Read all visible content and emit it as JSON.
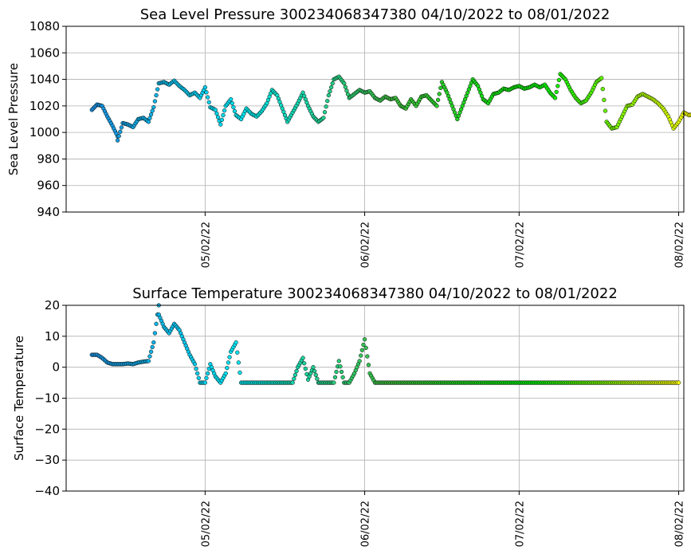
{
  "chart_data": [
    {
      "type": "scatter",
      "title": "Sea Level Pressure 300234068347380  04/10/2022 to 08/01/2022",
      "ylabel": "Sea Level Pressure",
      "xlabel": "",
      "ylim": [
        940,
        1080
      ],
      "yticks": [
        "940",
        "960",
        "980",
        "1000",
        "1020",
        "1040",
        "1060",
        "1080"
      ],
      "xlim": [
        "2022-04-05",
        "2022-08-03"
      ],
      "xticks": [
        {
          "date": "2022-05-02",
          "label": "05/02/22"
        },
        {
          "date": "2022-06-02",
          "label": "06/02/22"
        },
        {
          "date": "2022-07-02",
          "label": "07/02/22"
        },
        {
          "date": "2022-08-02",
          "label": "08/02/22"
        }
      ],
      "grid": true,
      "colormap": [
        "#1a8fe0",
        "#00e5f0",
        "#3fbf3f",
        "#00f000",
        "#ffff00"
      ],
      "series": [
        {
          "points": [
            [
              "2022-04-10",
              1017
            ],
            [
              "2022-04-11",
              1021
            ],
            [
              "2022-04-12",
              1020
            ],
            [
              "2022-04-13",
              1012
            ],
            [
              "2022-04-14",
              1005
            ],
            [
              "2022-04-15",
              997
            ],
            [
              "2022-04-15",
              994
            ],
            [
              "2022-04-16",
              1007
            ],
            [
              "2022-04-17",
              1006
            ],
            [
              "2022-04-18",
              1004
            ],
            [
              "2022-04-19",
              1010
            ],
            [
              "2022-04-20",
              1011
            ],
            [
              "2022-04-21",
              1008
            ],
            [
              "2022-04-22",
              1019
            ],
            [
              "2022-04-23",
              1037
            ],
            [
              "2022-04-24",
              1038
            ],
            [
              "2022-04-25",
              1036
            ],
            [
              "2022-04-26",
              1039
            ],
            [
              "2022-04-27",
              1035
            ],
            [
              "2022-04-28",
              1032
            ],
            [
              "2022-04-29",
              1028
            ],
            [
              "2022-04-30",
              1030
            ],
            [
              "2022-05-01",
              1026
            ],
            [
              "2022-05-02",
              1034
            ],
            [
              "2022-05-03",
              1019
            ],
            [
              "2022-05-04",
              1017
            ],
            [
              "2022-05-05",
              1006
            ],
            [
              "2022-05-06",
              1020
            ],
            [
              "2022-05-07",
              1025
            ],
            [
              "2022-05-08",
              1013
            ],
            [
              "2022-05-09",
              1010
            ],
            [
              "2022-05-10",
              1018
            ],
            [
              "2022-05-11",
              1014
            ],
            [
              "2022-05-12",
              1012
            ],
            [
              "2022-05-13",
              1016
            ],
            [
              "2022-05-14",
              1022
            ],
            [
              "2022-05-15",
              1032
            ],
            [
              "2022-05-16",
              1028
            ],
            [
              "2022-05-17",
              1018
            ],
            [
              "2022-05-18",
              1008
            ],
            [
              "2022-05-19",
              1015
            ],
            [
              "2022-05-20",
              1022
            ],
            [
              "2022-05-21",
              1030
            ],
            [
              "2022-05-22",
              1020
            ],
            [
              "2022-05-23",
              1012
            ],
            [
              "2022-05-24",
              1008
            ],
            [
              "2022-05-25",
              1011
            ],
            [
              "2022-05-26",
              1028
            ],
            [
              "2022-05-27",
              1040
            ],
            [
              "2022-05-28",
              1042
            ],
            [
              "2022-05-29",
              1037
            ],
            [
              "2022-05-30",
              1026
            ],
            [
              "2022-05-31",
              1029
            ],
            [
              "2022-06-01",
              1032
            ],
            [
              "2022-06-02",
              1030
            ],
            [
              "2022-06-03",
              1031
            ],
            [
              "2022-06-04",
              1026
            ],
            [
              "2022-06-05",
              1024
            ],
            [
              "2022-06-06",
              1027
            ],
            [
              "2022-06-07",
              1025
            ],
            [
              "2022-06-08",
              1026
            ],
            [
              "2022-06-09",
              1020
            ],
            [
              "2022-06-10",
              1018
            ],
            [
              "2022-06-11",
              1025
            ],
            [
              "2022-06-12",
              1020
            ],
            [
              "2022-06-13",
              1027
            ],
            [
              "2022-06-14",
              1028
            ],
            [
              "2022-06-15",
              1024
            ],
            [
              "2022-06-16",
              1020
            ],
            [
              "2022-06-17",
              1038
            ],
            [
              "2022-06-18",
              1030
            ],
            [
              "2022-06-19",
              1020
            ],
            [
              "2022-06-20",
              1010
            ],
            [
              "2022-06-21",
              1020
            ],
            [
              "2022-06-22",
              1030
            ],
            [
              "2022-06-23",
              1040
            ],
            [
              "2022-06-24",
              1035
            ],
            [
              "2022-06-25",
              1025
            ],
            [
              "2022-06-26",
              1022
            ],
            [
              "2022-06-27",
              1029
            ],
            [
              "2022-06-28",
              1030
            ],
            [
              "2022-06-29",
              1033
            ],
            [
              "2022-06-30",
              1032
            ],
            [
              "2022-07-01",
              1034
            ],
            [
              "2022-07-02",
              1035
            ],
            [
              "2022-07-03",
              1033
            ],
            [
              "2022-07-04",
              1034
            ],
            [
              "2022-07-05",
              1036
            ],
            [
              "2022-07-06",
              1034
            ],
            [
              "2022-07-07",
              1036
            ],
            [
              "2022-07-08",
              1030
            ],
            [
              "2022-07-09",
              1026
            ],
            [
              "2022-07-10",
              1044
            ],
            [
              "2022-07-11",
              1040
            ],
            [
              "2022-07-12",
              1032
            ],
            [
              "2022-07-13",
              1026
            ],
            [
              "2022-07-14",
              1022
            ],
            [
              "2022-07-15",
              1024
            ],
            [
              "2022-07-16",
              1030
            ],
            [
              "2022-07-17",
              1038
            ],
            [
              "2022-07-18",
              1041
            ],
            [
              "2022-07-19",
              1008
            ],
            [
              "2022-07-20",
              1003
            ],
            [
              "2022-07-21",
              1004
            ],
            [
              "2022-07-22",
              1012
            ],
            [
              "2022-07-23",
              1020
            ],
            [
              "2022-07-24",
              1021
            ],
            [
              "2022-07-25",
              1027
            ],
            [
              "2022-07-26",
              1029
            ],
            [
              "2022-07-27",
              1027
            ],
            [
              "2022-07-28",
              1025
            ],
            [
              "2022-07-29",
              1022
            ],
            [
              "2022-07-30",
              1018
            ],
            [
              "2022-07-31",
              1012
            ],
            [
              "2022-08-01",
              1003
            ],
            [
              "2022-08-02",
              1008
            ],
            [
              "2022-08-03",
              1015
            ],
            [
              "2022-08-04",
              1013
            ],
            [
              "2022-08-05",
              1014
            ]
          ]
        }
      ]
    },
    {
      "type": "scatter",
      "title": "Surface Temperature 300234068347380  04/10/2022 to 08/01/2022",
      "ylabel": "Surface Temperature",
      "xlabel": "",
      "ylim": [
        -40,
        20
      ],
      "yticks": [
        "−40",
        "−30",
        "−20",
        "−10",
        "0",
        "10",
        "20"
      ],
      "xlim": [
        "2022-04-05",
        "2022-08-03"
      ],
      "xticks": [
        {
          "date": "2022-05-02",
          "label": "05/02/22"
        },
        {
          "date": "2022-06-02",
          "label": "06/02/22"
        },
        {
          "date": "2022-07-02",
          "label": "07/02/22"
        },
        {
          "date": "2022-08-02",
          "label": "08/02/22"
        }
      ],
      "grid": true,
      "colormap": [
        "#1a8fe0",
        "#00e5f0",
        "#3fbf3f",
        "#00f000",
        "#ffff00"
      ],
      "series": [
        {
          "points": [
            [
              "2022-04-10",
              4
            ],
            [
              "2022-04-11",
              4
            ],
            [
              "2022-04-12",
              3
            ],
            [
              "2022-04-13",
              1.5
            ],
            [
              "2022-04-14",
              1
            ],
            [
              "2022-04-15",
              1
            ],
            [
              "2022-04-16",
              1
            ],
            [
              "2022-04-17",
              1.2
            ],
            [
              "2022-04-18",
              1
            ],
            [
              "2022-04-19",
              1.5
            ],
            [
              "2022-04-20",
              1.8
            ],
            [
              "2022-04-21",
              2
            ],
            [
              "2022-04-22",
              8
            ],
            [
              "2022-04-23",
              20
            ],
            [
              "2022-04-23",
              17
            ],
            [
              "2022-04-24",
              13
            ],
            [
              "2022-04-25",
              11
            ],
            [
              "2022-04-26",
              14
            ],
            [
              "2022-04-27",
              12
            ],
            [
              "2022-04-28",
              8
            ],
            [
              "2022-04-29",
              4
            ],
            [
              "2022-04-30",
              1
            ],
            [
              "2022-05-01",
              -5
            ],
            [
              "2022-05-02",
              -5
            ],
            [
              "2022-05-03",
              1
            ],
            [
              "2022-05-04",
              -3
            ],
            [
              "2022-05-05",
              -5
            ],
            [
              "2022-05-06",
              -2
            ],
            [
              "2022-05-07",
              5
            ],
            [
              "2022-05-08",
              8
            ],
            [
              "2022-05-09",
              -5
            ],
            [
              "2022-05-10",
              -5
            ],
            [
              "2022-05-11",
              -5
            ],
            [
              "2022-05-12",
              -5
            ],
            [
              "2022-05-13",
              -5
            ],
            [
              "2022-05-14",
              -5
            ],
            [
              "2022-05-15",
              -5
            ],
            [
              "2022-05-16",
              -5
            ],
            [
              "2022-05-17",
              -5
            ],
            [
              "2022-05-18",
              -5
            ],
            [
              "2022-05-19",
              -5
            ],
            [
              "2022-05-20",
              0
            ],
            [
              "2022-05-21",
              3
            ],
            [
              "2022-05-22",
              -4
            ],
            [
              "2022-05-23",
              0
            ],
            [
              "2022-05-24",
              -5
            ],
            [
              "2022-05-25",
              -5
            ],
            [
              "2022-05-26",
              -5
            ],
            [
              "2022-05-27",
              -5
            ],
            [
              "2022-05-28",
              2
            ],
            [
              "2022-05-29",
              -5
            ],
            [
              "2022-05-30",
              -5
            ],
            [
              "2022-05-31",
              -2
            ],
            [
              "2022-06-01",
              2
            ],
            [
              "2022-06-02",
              9
            ],
            [
              "2022-06-03",
              -2
            ],
            [
              "2022-06-04",
              -5
            ],
            [
              "2022-06-10",
              -5
            ],
            [
              "2022-06-20",
              -5
            ],
            [
              "2022-06-30",
              -5
            ],
            [
              "2022-07-10",
              -5
            ],
            [
              "2022-07-20",
              -5
            ],
            [
              "2022-07-30",
              -5
            ],
            [
              "2022-08-02",
              -5
            ]
          ]
        }
      ]
    }
  ]
}
